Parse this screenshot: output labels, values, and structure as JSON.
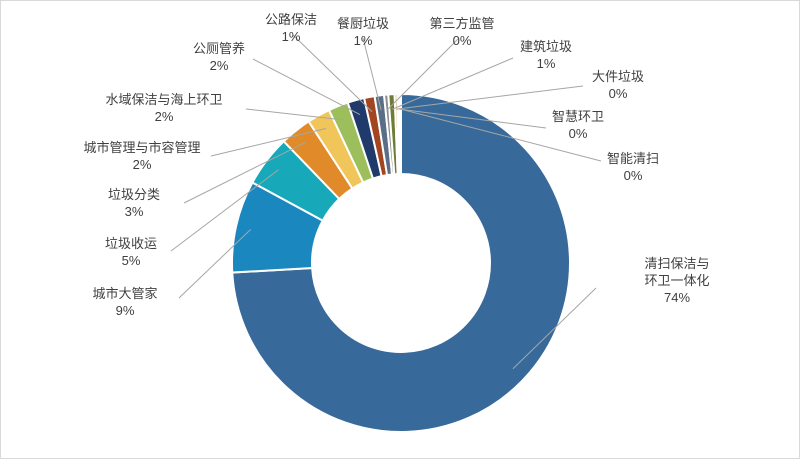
{
  "chart_data": {
    "type": "pie",
    "variant": "donut",
    "legend": "none",
    "slices": [
      {
        "name": "清扫保洁与环卫一体化",
        "label_lines": [
          "清扫保洁与",
          "环卫一体化"
        ],
        "percent_label": "74%",
        "value": 74.1,
        "color": "#376A9A"
      },
      {
        "name": "城市大管家",
        "label_lines": [
          "城市大管家"
        ],
        "percent_label": "9%",
        "value": 8.8,
        "color": "#1A87BF"
      },
      {
        "name": "垃圾收运",
        "label_lines": [
          "垃圾收运"
        ],
        "percent_label": "5%",
        "value": 4.9,
        "color": "#17A9B9"
      },
      {
        "name": "垃圾分类",
        "label_lines": [
          "垃圾分类"
        ],
        "percent_label": "3%",
        "value": 3.0,
        "color": "#E08A2A"
      },
      {
        "name": "城市管理与市容管理",
        "label_lines": [
          "城市管理与市容管理"
        ],
        "percent_label": "2%",
        "value": 2.2,
        "color": "#F0C55A"
      },
      {
        "name": "水域保洁与海上环卫",
        "label_lines": [
          "水域保洁与海上环卫"
        ],
        "percent_label": "2%",
        "value": 1.9,
        "color": "#9CBF5B"
      },
      {
        "name": "公厕管养",
        "label_lines": [
          "公厕管养"
        ],
        "percent_label": "2%",
        "value": 1.6,
        "color": "#1F3A6B"
      },
      {
        "name": "公路保洁",
        "label_lines": [
          "公路保洁"
        ],
        "percent_label": "1%",
        "value": 1.0,
        "color": "#A34520"
      },
      {
        "name": "餐厨垃圾",
        "label_lines": [
          "餐厨垃圾"
        ],
        "percent_label": "1%",
        "value": 0.9,
        "color": "#5A6E87"
      },
      {
        "name": "第三方监管",
        "label_lines": [
          "第三方监管"
        ],
        "percent_label": "0%",
        "value": 0.4,
        "color": "#8E8E8E"
      },
      {
        "name": "建筑垃圾",
        "label_lines": [
          "建筑垃圾"
        ],
        "percent_label": "1%",
        "value": 0.6,
        "color": "#6E7C36"
      },
      {
        "name": "大件垃圾",
        "label_lines": [
          "大件垃圾"
        ],
        "percent_label": "0%",
        "value": 0.25,
        "color": "#D9A14A"
      },
      {
        "name": "智慧环卫",
        "label_lines": [
          "智慧环卫"
        ],
        "percent_label": "0%",
        "value": 0.2,
        "color": "#4A6FA5"
      },
      {
        "name": "智能清扫",
        "label_lines": [
          "智能清扫"
        ],
        "percent_label": "0%",
        "value": 0.15,
        "color": "#2E5E2E"
      }
    ]
  }
}
